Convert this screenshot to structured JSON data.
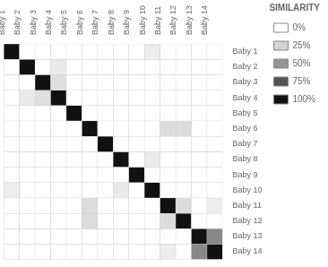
{
  "chart_data": {
    "type": "heatmap",
    "categories": [
      "Baby 1",
      "Baby 2",
      "Baby 3",
      "Baby 4",
      "Baby 5",
      "Baby 6",
      "Baby 7",
      "Baby 8",
      "Baby 9",
      "Baby 10",
      "Baby 11",
      "Baby 12",
      "Baby 13",
      "Baby 14"
    ],
    "y_categories": [
      "Baby 1",
      "Baby 2",
      "Baby 3",
      "Baby 4",
      "Baby 5",
      "Baby 6",
      "Baby 7",
      "Baby 8",
      "Baby 9",
      "Baby 10",
      "Baby 11",
      "Baby 12",
      "Baby 13",
      "Baby 14"
    ],
    "cells": [
      [
        1.0,
        0.0,
        0.0,
        0.0,
        0.0,
        0.0,
        0.0,
        0.0,
        0.0,
        0.1,
        0.0,
        0.0,
        0.0,
        0.0
      ],
      [
        0.0,
        1.0,
        0.0,
        0.12,
        0.0,
        0.0,
        0.0,
        0.0,
        0.0,
        0.0,
        0.0,
        0.0,
        0.0,
        0.0
      ],
      [
        0.0,
        0.0,
        1.0,
        0.18,
        0.0,
        0.0,
        0.0,
        0.0,
        0.0,
        0.0,
        0.0,
        0.0,
        0.0,
        0.0
      ],
      [
        0.0,
        0.12,
        0.18,
        1.0,
        0.0,
        0.0,
        0.0,
        0.0,
        0.0,
        0.0,
        0.0,
        0.0,
        0.0,
        0.0
      ],
      [
        0.0,
        0.0,
        0.0,
        0.0,
        1.0,
        0.0,
        0.0,
        0.0,
        0.0,
        0.0,
        0.0,
        0.0,
        0.0,
        0.0
      ],
      [
        0.0,
        0.0,
        0.0,
        0.0,
        0.0,
        1.0,
        0.0,
        0.0,
        0.0,
        0.0,
        0.2,
        0.2,
        0.0,
        0.0
      ],
      [
        0.0,
        0.0,
        0.0,
        0.0,
        0.0,
        0.0,
        1.0,
        0.0,
        0.0,
        0.0,
        0.0,
        0.0,
        0.0,
        0.0
      ],
      [
        0.0,
        0.0,
        0.0,
        0.0,
        0.0,
        0.0,
        0.0,
        1.0,
        0.0,
        0.12,
        0.0,
        0.0,
        0.0,
        0.0
      ],
      [
        0.0,
        0.0,
        0.0,
        0.0,
        0.0,
        0.0,
        0.0,
        0.0,
        1.0,
        0.0,
        0.0,
        0.0,
        0.0,
        0.0
      ],
      [
        0.1,
        0.0,
        0.0,
        0.0,
        0.0,
        0.0,
        0.0,
        0.12,
        0.0,
        1.0,
        0.0,
        0.0,
        0.0,
        0.0
      ],
      [
        0.0,
        0.0,
        0.0,
        0.0,
        0.0,
        0.2,
        0.0,
        0.0,
        0.0,
        0.0,
        1.0,
        0.2,
        0.0,
        0.1
      ],
      [
        0.0,
        0.0,
        0.0,
        0.0,
        0.0,
        0.2,
        0.0,
        0.0,
        0.0,
        0.0,
        0.2,
        1.0,
        0.0,
        0.0
      ],
      [
        0.0,
        0.0,
        0.0,
        0.0,
        0.0,
        0.0,
        0.0,
        0.0,
        0.0,
        0.0,
        0.0,
        0.0,
        1.0,
        0.55
      ],
      [
        0.0,
        0.0,
        0.0,
        0.0,
        0.0,
        0.0,
        0.0,
        0.0,
        0.0,
        0.0,
        0.1,
        0.0,
        0.55,
        1.0
      ]
    ],
    "color_range": [
      0,
      1
    ],
    "legend_title": "SIMILARITY",
    "color_legend": [
      {
        "value": 0,
        "label": "0%",
        "color": "#ffffff"
      },
      {
        "value": 0.25,
        "label": "25%",
        "color": "#d3d3d3"
      },
      {
        "value": 0.5,
        "label": "50%",
        "color": "#969696"
      },
      {
        "value": 0.75,
        "label": "75%",
        "color": "#525252"
      },
      {
        "value": 1,
        "label": "100%",
        "color": "#111111"
      }
    ],
    "grid": true
  }
}
